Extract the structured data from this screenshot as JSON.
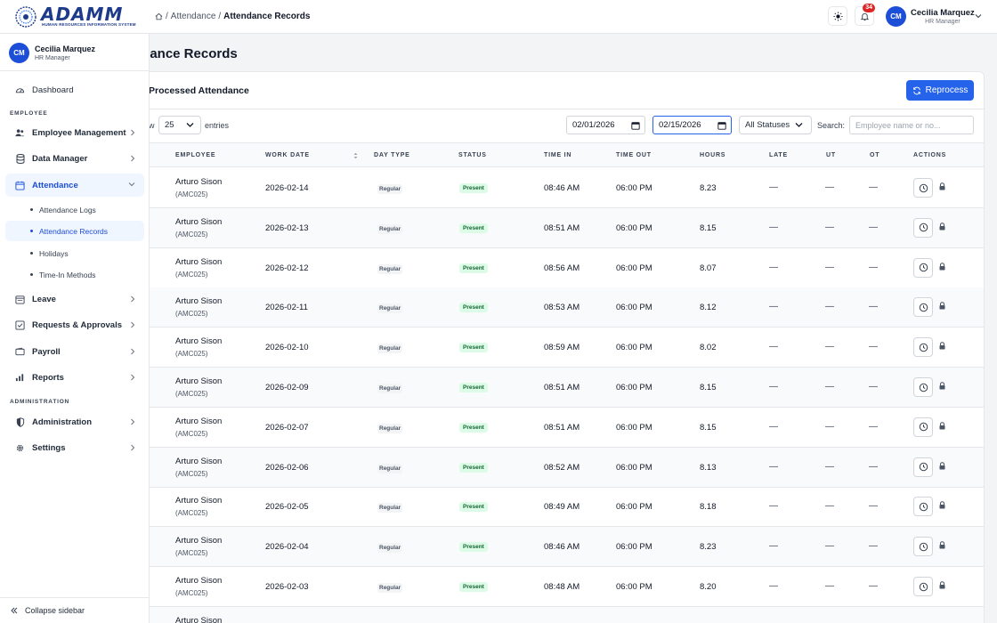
{
  "brand": {
    "name": "ADAMM",
    "tagline": "HUMAN RESOURCES INFORMATION SYSTEM",
    "color": "#1e3a8a"
  },
  "breadcrumb": {
    "sep": "/",
    "parent": "Attendance",
    "current": "Attendance Records"
  },
  "topbar": {
    "notification_count": "34",
    "user_initials": "CM",
    "user_name": "Cecilia Marquez",
    "user_role": "HR Manager"
  },
  "sidebar": {
    "user_initials": "CM",
    "user_name": "Cecilia Marquez",
    "user_role": "HR Manager",
    "dashboard": "Dashboard",
    "section_employee": "EMPLOYEE",
    "employee_management": "Employee Management",
    "data_manager": "Data Manager",
    "attendance": "Attendance",
    "sub": [
      "Attendance Logs",
      "Attendance Records",
      "Holidays",
      "Time-In Methods"
    ],
    "leave": "Leave",
    "requests": "Requests & Approvals",
    "payroll": "Payroll",
    "reports": "Reports",
    "section_admin": "ADMINISTRATION",
    "administration": "Administration",
    "settings": "Settings",
    "collapse": "Collapse sidebar"
  },
  "page": {
    "title": "ndance Records"
  },
  "card": {
    "title": "Processed Attendance",
    "reprocess_label": "Reprocess"
  },
  "filters": {
    "show_label": "w",
    "entries_value": "25",
    "entries_label": "entries",
    "date_from": "02/01/2026",
    "date_to": "02/15/2026",
    "status_value": "All Statuses",
    "search_label": "Search:",
    "search_placeholder": "Employee name or no..."
  },
  "columns": [
    "EMPLOYEE",
    "WORK DATE",
    "DAY TYPE",
    "STATUS",
    "TIME IN",
    "TIME OUT",
    "HOURS",
    "LATE",
    "UT",
    "OT",
    "ACTIONS"
  ],
  "rows": [
    {
      "name": "Arturo Sison",
      "code": "(AMC025)",
      "date": "2026-02-14",
      "day_type": "Regular",
      "status": "Present",
      "time_in": "08:46 AM",
      "time_out": "06:00 PM",
      "hours": "8.23",
      "late": "—",
      "ut": "—",
      "ot": "—"
    },
    {
      "name": "Arturo Sison",
      "code": "(AMC025)",
      "date": "2026-02-13",
      "day_type": "Regular",
      "status": "Present",
      "time_in": "08:51 AM",
      "time_out": "06:00 PM",
      "hours": "8.15",
      "late": "—",
      "ut": "—",
      "ot": "—"
    },
    {
      "name": "Arturo Sison",
      "code": "(AMC025)",
      "date": "2026-02-12",
      "day_type": "Regular",
      "status": "Present",
      "time_in": "08:56 AM",
      "time_out": "06:00 PM",
      "hours": "8.07",
      "late": "—",
      "ut": "—",
      "ot": "—"
    },
    {
      "name": "Arturo Sison",
      "code": "(AMC025)",
      "date": "2026-02-11",
      "day_type": "Regular",
      "status": "Present",
      "time_in": "08:53 AM",
      "time_out": "06:00 PM",
      "hours": "8.12",
      "late": "—",
      "ut": "—",
      "ot": "—"
    },
    {
      "name": "Arturo Sison",
      "code": "(AMC025)",
      "date": "2026-02-10",
      "day_type": "Regular",
      "status": "Present",
      "time_in": "08:59 AM",
      "time_out": "06:00 PM",
      "hours": "8.02",
      "late": "—",
      "ut": "—",
      "ot": "—"
    },
    {
      "name": "Arturo Sison",
      "code": "(AMC025)",
      "date": "2026-02-09",
      "day_type": "Regular",
      "status": "Present",
      "time_in": "08:51 AM",
      "time_out": "06:00 PM",
      "hours": "8.15",
      "late": "—",
      "ut": "—",
      "ot": "—"
    },
    {
      "name": "Arturo Sison",
      "code": "(AMC025)",
      "date": "2026-02-07",
      "day_type": "Regular",
      "status": "Present",
      "time_in": "08:51 AM",
      "time_out": "06:00 PM",
      "hours": "8.15",
      "late": "—",
      "ut": "—",
      "ot": "—"
    },
    {
      "name": "Arturo Sison",
      "code": "(AMC025)",
      "date": "2026-02-06",
      "day_type": "Regular",
      "status": "Present",
      "time_in": "08:52 AM",
      "time_out": "06:00 PM",
      "hours": "8.13",
      "late": "—",
      "ut": "—",
      "ot": "—"
    },
    {
      "name": "Arturo Sison",
      "code": "(AMC025)",
      "date": "2026-02-05",
      "day_type": "Regular",
      "status": "Present",
      "time_in": "08:49 AM",
      "time_out": "06:00 PM",
      "hours": "8.18",
      "late": "—",
      "ut": "—",
      "ot": "—"
    },
    {
      "name": "Arturo Sison",
      "code": "(AMC025)",
      "date": "2026-02-04",
      "day_type": "Regular",
      "status": "Present",
      "time_in": "08:46 AM",
      "time_out": "06:00 PM",
      "hours": "8.23",
      "late": "—",
      "ut": "—",
      "ot": "—"
    },
    {
      "name": "Arturo Sison",
      "code": "(AMC025)",
      "date": "2026-02-03",
      "day_type": "Regular",
      "status": "Present",
      "time_in": "08:48 AM",
      "time_out": "06:00 PM",
      "hours": "8.20",
      "late": "—",
      "ut": "—",
      "ot": "—"
    },
    {
      "name": "Arturo Sison",
      "code": "",
      "date": "",
      "day_type": "",
      "status": "",
      "time_in": "",
      "time_out": "",
      "hours": "",
      "late": "",
      "ut": "",
      "ot": ""
    }
  ],
  "colors": {
    "accent": "#2563eb",
    "present_bg": "#dcfce7",
    "present_fg": "#166534",
    "badge": "#dc2626"
  },
  "icons": {
    "theme": "sun-icon",
    "notifications": "bell-icon",
    "action": "clock-icon",
    "lock": "lock-icon"
  }
}
